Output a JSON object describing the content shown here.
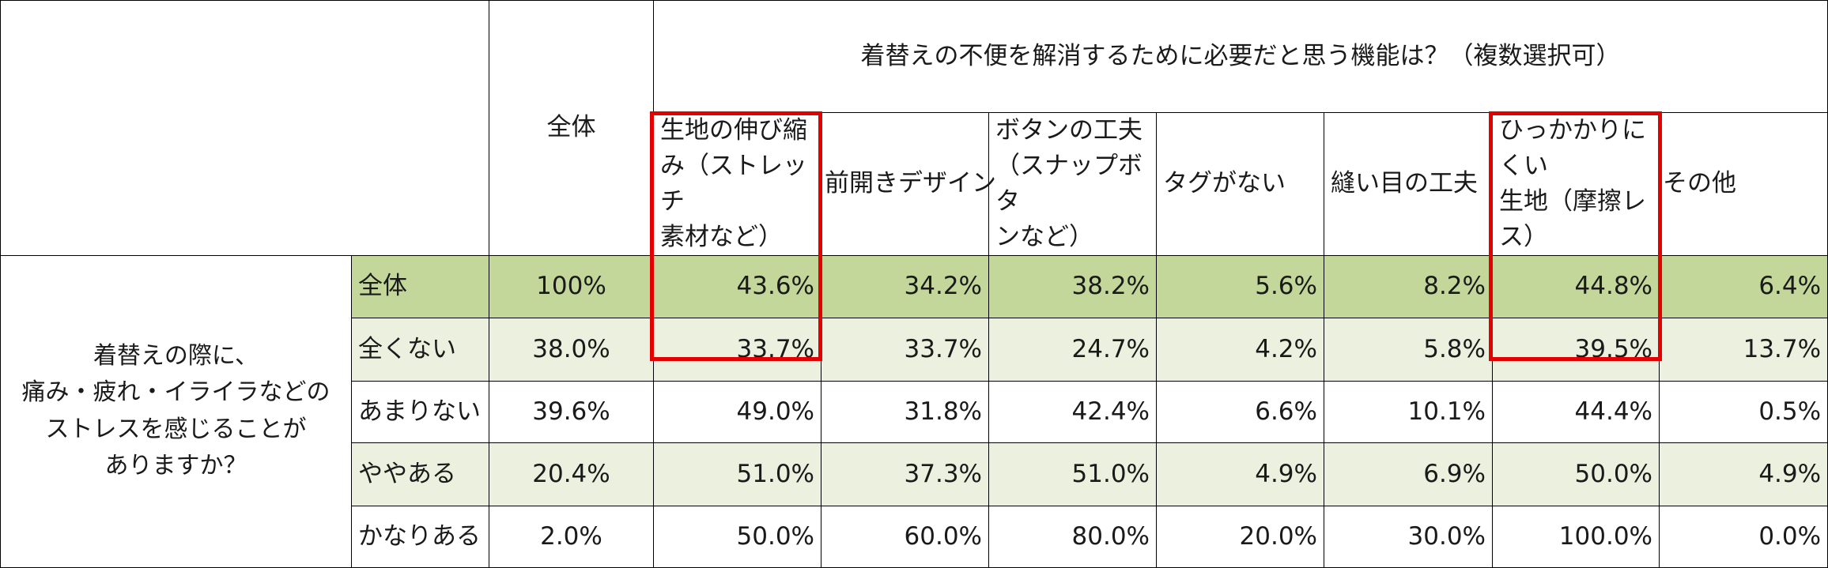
{
  "question_header": "着替えの不便を解消するために必要だと思う機能は？（複数選択可）",
  "survey_question": [
    "着替えの際に、",
    "痛み・疲れ・イライラなどの",
    "ストレスを感じることが",
    "ありますか？"
  ],
  "columns": {
    "total": "全体",
    "c1": [
      "生地の伸び縮",
      "み（ストレッチ",
      "素材など）"
    ],
    "c2": "前開きデザイン",
    "c3": [
      "ボタンの工夫",
      "（スナップボタ",
      "ンなど）"
    ],
    "c4": "タグがない",
    "c5": "縫い目の工夫",
    "c6": [
      "ひっかかりにくい",
      "生地（摩擦レ",
      "ス）"
    ],
    "c7": "その他"
  },
  "rows": [
    {
      "label": "全体",
      "total": "100%",
      "c1": "43.6%",
      "c2": "34.2%",
      "c3": "38.2%",
      "c4": "5.6%",
      "c5": "8.2%",
      "c6": "44.8%",
      "c7": "6.4%"
    },
    {
      "label": "全くない",
      "total": "38.0%",
      "c1": "33.7%",
      "c2": "33.7%",
      "c3": "24.7%",
      "c4": "4.2%",
      "c5": "5.8%",
      "c6": "39.5%",
      "c7": "13.7%"
    },
    {
      "label": "あまりない",
      "total": "39.6%",
      "c1": "49.0%",
      "c2": "31.8%",
      "c3": "42.4%",
      "c4": "6.6%",
      "c5": "10.1%",
      "c6": "44.4%",
      "c7": "0.5%"
    },
    {
      "label": "ややある",
      "total": "20.4%",
      "c1": "51.0%",
      "c2": "37.3%",
      "c3": "51.0%",
      "c4": "4.9%",
      "c5": "6.9%",
      "c6": "50.0%",
      "c7": "4.9%"
    },
    {
      "label": "かなりある",
      "total": "2.0%",
      "c1": "50.0%",
      "c2": "60.0%",
      "c3": "80.0%",
      "c4": "20.0%",
      "c5": "30.0%",
      "c6": "100.0%",
      "c7": "0.0%"
    }
  ],
  "colors": {
    "total_row_bg": "#c4d79b",
    "light_row_bg": "#ebf1de",
    "highlight_border": "#e30000"
  }
}
